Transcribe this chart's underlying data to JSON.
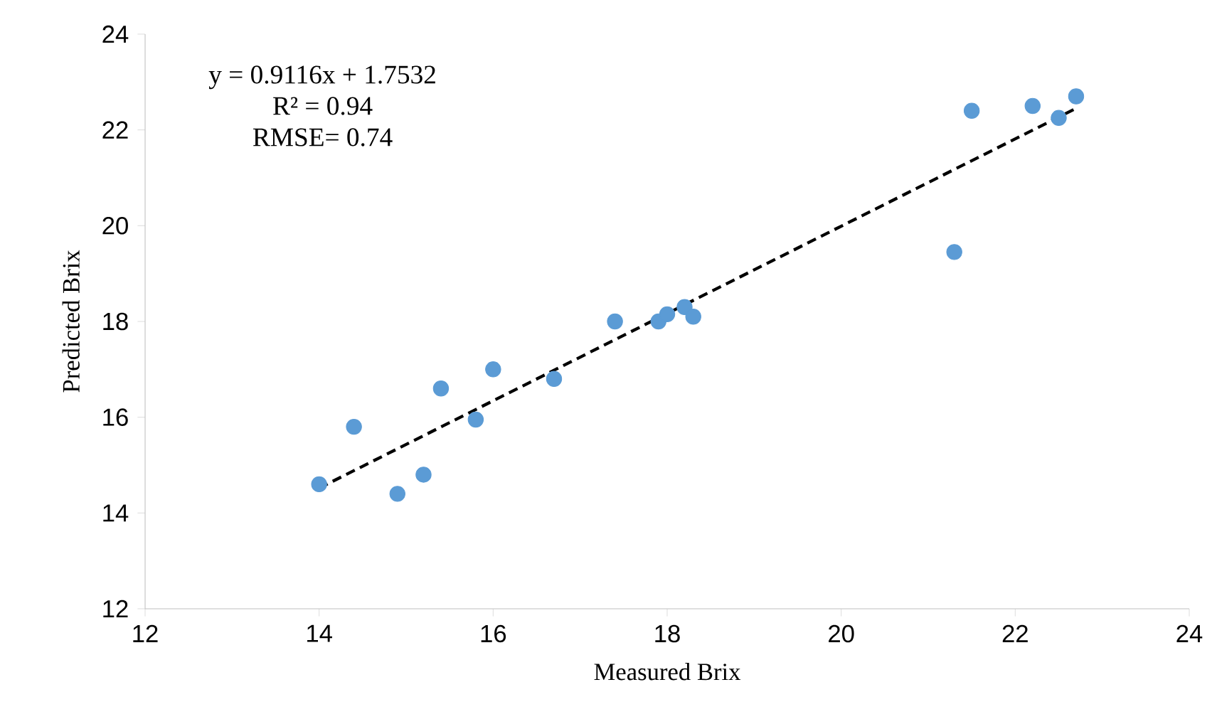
{
  "chart_data": {
    "type": "scatter",
    "xlabel": "Measured Brix",
    "ylabel": "Predicted Brix",
    "annotations": [
      "y = 0.9116x + 1.7532",
      "R² = 0.94",
      "RMSE= 0.74"
    ],
    "xlim": [
      12,
      24
    ],
    "xticks": [
      12,
      14,
      16,
      18,
      20,
      22,
      24
    ],
    "ylim": [
      12,
      24
    ],
    "yticks": [
      12,
      14,
      16,
      18,
      20,
      22,
      24
    ],
    "grid": false,
    "marker": "circle",
    "series": [
      {
        "color": "#5b9bd5",
        "x": [
          14.0,
          14.4,
          14.9,
          15.2,
          15.4,
          15.8,
          16.0,
          16.7,
          17.4,
          17.9,
          18.0,
          18.2,
          18.3,
          21.3,
          21.5,
          22.2,
          22.5,
          22.7
        ],
        "values": [
          14.6,
          15.8,
          14.4,
          14.8,
          16.6,
          15.95,
          17.0,
          16.8,
          18.0,
          18.0,
          18.15,
          18.3,
          18.1,
          19.45,
          22.4,
          22.5,
          22.25,
          22.7
        ]
      },
      {
        "type": "line",
        "color": "#000000",
        "marker": "none",
        "line_style": "dashed",
        "x": [
          14.0,
          22.7
        ],
        "values": [
          14.52,
          22.45
        ]
      }
    ]
  }
}
